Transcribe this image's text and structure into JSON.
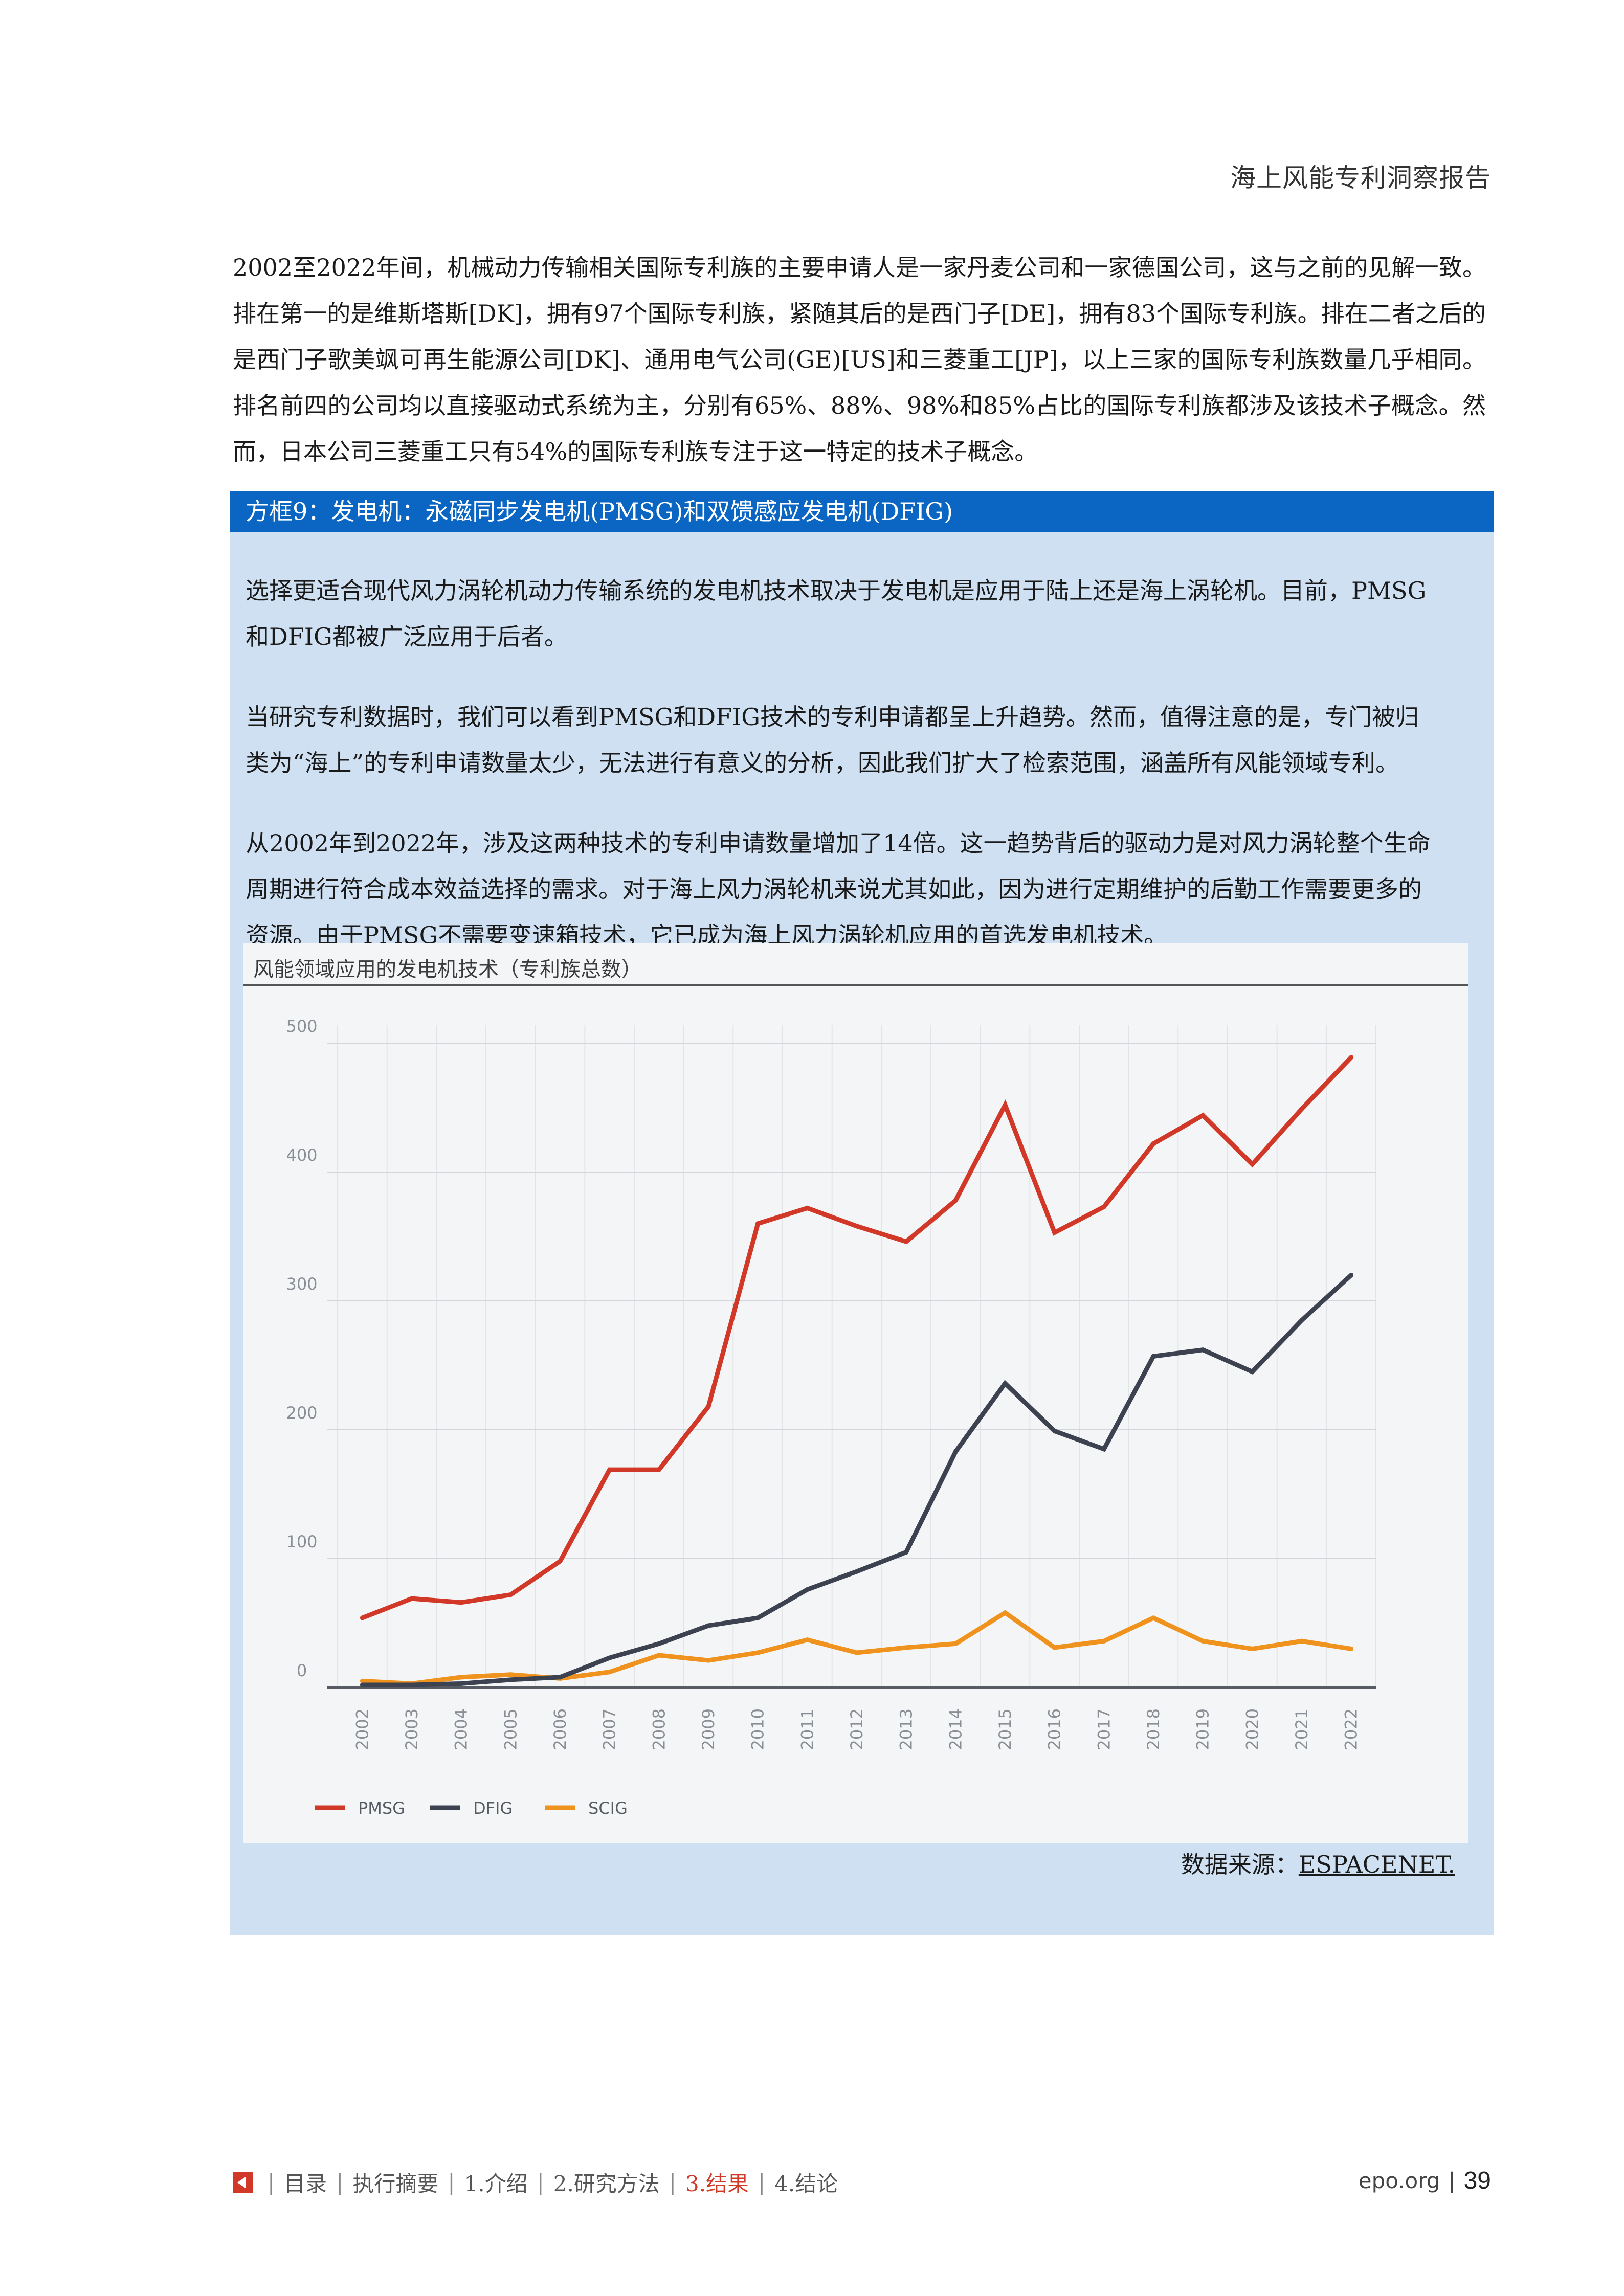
{
  "header": {
    "running_title": "海上风能专利洞察报告"
  },
  "intro": {
    "paragraph": "2002至2022年间，机械动力传输相关国际专利族的主要申请人是一家丹麦公司和一家德国公司，这与之前的见解一致。排在第一的是维斯塔斯[DK]，拥有97个国际专利族，紧随其后的是西门子[DE]，拥有83个国际专利族。排在二者之后的是西门子歌美飒可再生能源公司[DK]、通用电气公司(GE)[US]和三菱重工[JP]，以上三家的国际专利族数量几乎相同。排名前四的公司均以直接驱动式系统为主，分别有65%、88%、98%和85%占比的国际专利族都涉及该技术子概念。然而，日本公司三菱重工只有54%的国际专利族专注于这一特定的技术子概念。"
  },
  "box": {
    "title": "方框9：发电机：永磁同步发电机(PMSG)和双馈感应发电机(DFIG)",
    "paragraphs": [
      "选择更适合现代风力涡轮机动力传输系统的发电机技术取决于发电机是应用于陆上还是海上涡轮机。目前，PMSG和DFIG都被广泛应用于后者。",
      "当研究专利数据时，我们可以看到PMSG和DFIG技术的专利申请都呈上升趋势。然而，值得注意的是，专门被归类为“海上”的专利申请数量太少，无法进行有意义的分析，因此我们扩大了检索范围，涵盖所有风能领域专利。",
      "从2002年到2022年，涉及这两种技术的专利申请数量增加了14倍。这一趋势背后的驱动力是对风力涡轮整个生命周期进行符合成本效益选择的需求。对于海上风力涡轮机来说尤其如此，因为进行定期维护的后勤工作需要更多的资源。由于PMSG不需要变速箱技术，它已成为海上风力涡轮机应用的首选发电机技术。"
    ],
    "source_label": "数据来源：",
    "source_link": "ESPACENET."
  },
  "chart_data": {
    "type": "line",
    "title": "风能领域应用的发电机技术（专利族总数）",
    "xlabel": "",
    "ylabel": "",
    "ylim": [
      0,
      500
    ],
    "yticks": [
      0,
      100,
      200,
      300,
      400,
      500
    ],
    "categories": [
      "2002",
      "2003",
      "2004",
      "2005",
      "2006",
      "2007",
      "2008",
      "2009",
      "2010",
      "2011",
      "2012",
      "2013",
      "2014",
      "2015",
      "2016",
      "2017",
      "2018",
      "2019",
      "2020",
      "2021",
      "2022"
    ],
    "grid": true,
    "legend_position": "bottom-left",
    "series": [
      {
        "name": "PMSG",
        "color": "#d13828",
        "values": [
          54,
          69,
          66,
          72,
          98,
          169,
          169,
          218,
          360,
          372,
          358,
          346,
          378,
          452,
          353,
          373,
          422,
          444,
          406,
          449,
          489
        ]
      },
      {
        "name": "DFIG",
        "color": "#3d4250",
        "values": [
          2,
          2,
          3,
          6,
          8,
          23,
          34,
          48,
          54,
          76,
          90,
          105,
          183,
          236,
          199,
          185,
          257,
          262,
          245,
          285,
          320
        ]
      },
      {
        "name": "SCIG",
        "color": "#f0921e",
        "values": [
          5,
          3,
          8,
          10,
          7,
          12,
          25,
          21,
          27,
          37,
          27,
          31,
          34,
          58,
          31,
          36,
          54,
          36,
          30,
          36,
          30
        ]
      }
    ]
  },
  "footer": {
    "nav": [
      "目录",
      "执行摘要",
      "1.介绍",
      "2.研究方法",
      "3.结果",
      "4.结论"
    ],
    "active_index": 4,
    "site": "epo.org",
    "page": "39"
  }
}
